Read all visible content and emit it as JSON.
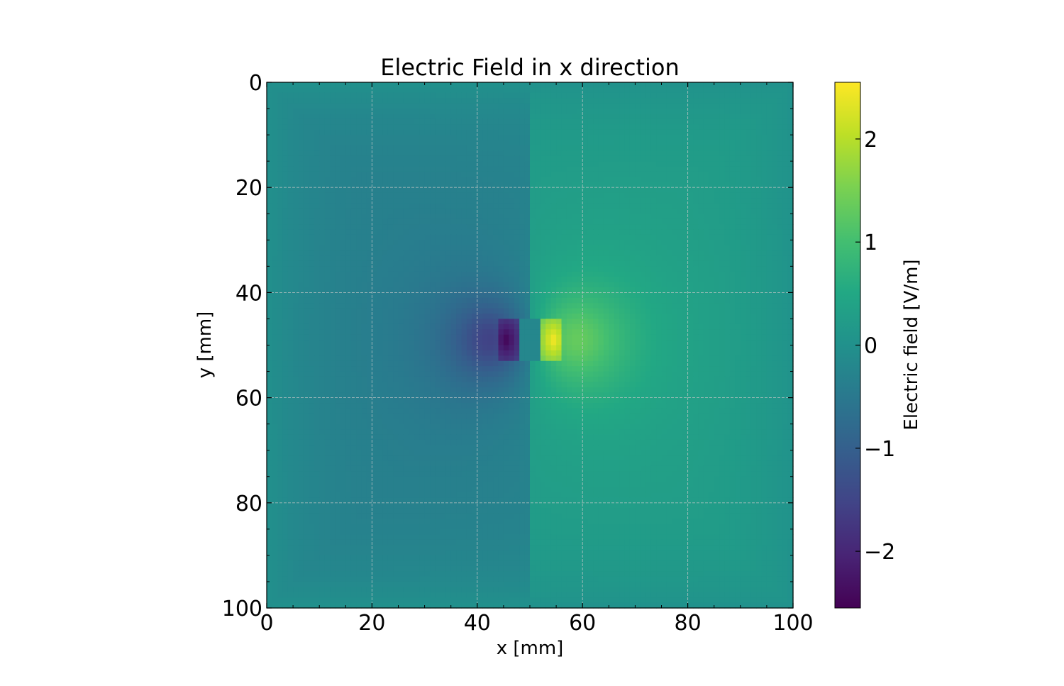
{
  "chart_data": {
    "type": "heatmap",
    "title": "Electric Field in x direction",
    "xlabel": "x [mm]",
    "ylabel": "y [mm]",
    "xlim": [
      0,
      100
    ],
    "ylim": [
      100,
      0
    ],
    "y_inverted": true,
    "xticks": [
      0,
      20,
      40,
      60,
      80,
      100
    ],
    "yticks": [
      0,
      20,
      40,
      60,
      80,
      100
    ],
    "grid": true,
    "colormap": "viridis",
    "colorbar": {
      "label": "Electric field [V/m]",
      "range": [
        -2.55,
        2.55
      ],
      "ticks": [
        -2,
        -1,
        0,
        1,
        2
      ],
      "tick_labels": [
        "−2",
        "−1",
        "0",
        "1",
        "2"
      ]
    },
    "field_model": {
      "description_source": "visual",
      "grid_resolution": [
        100,
        100
      ],
      "dipole": {
        "negative_plate": {
          "x": [
            44,
            48
          ],
          "y": [
            45,
            53
          ]
        },
        "positive_plate": {
          "x": [
            52,
            56
          ],
          "y": [
            45,
            53
          ]
        },
        "peak_min": -2.5,
        "peak_max": 2.5
      },
      "background": {
        "left_value": -0.35,
        "right_value": 0.25,
        "border_value": -0.05
      }
    }
  }
}
